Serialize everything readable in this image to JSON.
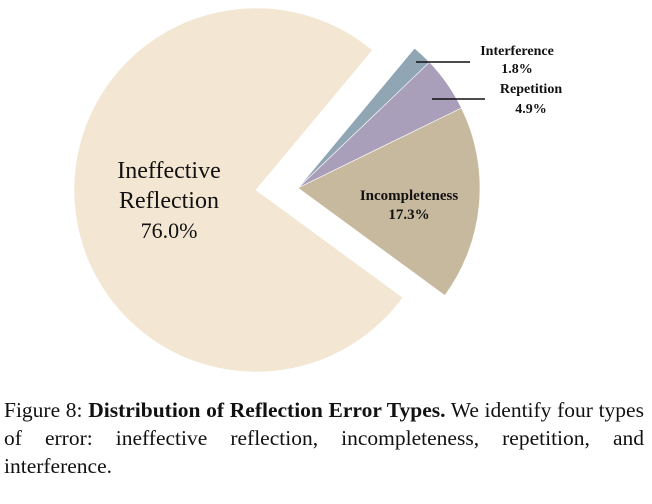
{
  "chart_data": {
    "type": "pie",
    "title": "",
    "slices": [
      {
        "label": "Ineffective Reflection",
        "label_lines": [
          "Ineffective",
          "Reflection"
        ],
        "value": 76.0,
        "value_label": "76.0%",
        "color": "#f3e6d3",
        "exploded": true
      },
      {
        "label": "Incompleteness",
        "value": 17.3,
        "value_label": "17.3%",
        "color": "#c7b99e"
      },
      {
        "label": "Repetition",
        "value": 4.9,
        "value_label": "4.9%",
        "color": "#a99fba"
      },
      {
        "label": "Interference",
        "value": 1.8,
        "value_label": "1.8%",
        "color": "#90a6b4"
      }
    ]
  },
  "caption": {
    "figure_label": "Figure 8:",
    "title": "Distribution of Reflection Error Types.",
    "text": "We identify four types of error: ineffective reflection, incompleteness, repetition, and interference."
  }
}
